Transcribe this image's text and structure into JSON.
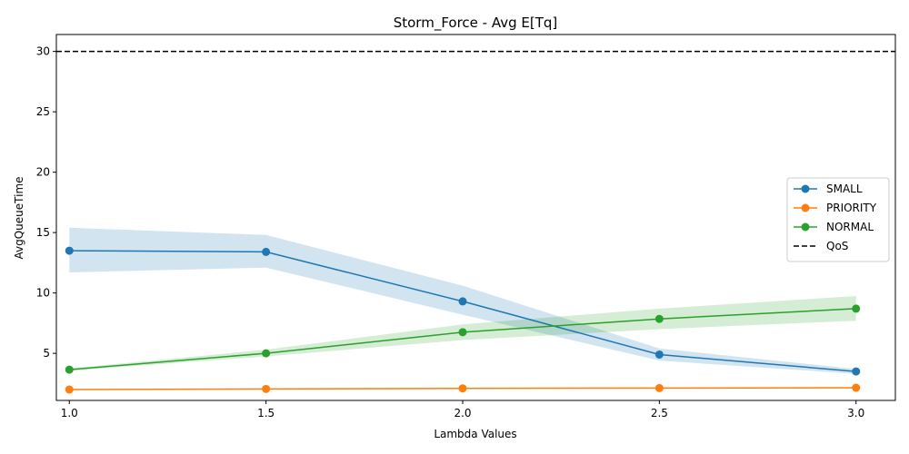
{
  "chart_data": {
    "type": "line",
    "title": "Storm_Force - Avg E[Tq]",
    "xlabel": "Lambda Values",
    "ylabel": "AvgQueueTime",
    "x": [
      1.0,
      1.5,
      2.0,
      2.5,
      3.0
    ],
    "x_ticks": [
      "1.0",
      "1.5",
      "2.0",
      "2.5",
      "3.0"
    ],
    "y_ticks": [
      "5",
      "10",
      "15",
      "20",
      "25",
      "30"
    ],
    "xlim": [
      0.967,
      3.1
    ],
    "ylim": [
      1.1,
      31.4
    ],
    "grid": false,
    "legend_position": "center-right",
    "series": [
      {
        "name": "SMALL",
        "color": "#1f77b4",
        "values": [
          13.5,
          13.4,
          9.3,
          4.9,
          3.5
        ],
        "band_lower": [
          11.7,
          12.1,
          8.2,
          4.4,
          3.3
        ],
        "band_upper": [
          15.4,
          14.8,
          10.6,
          5.4,
          3.7
        ]
      },
      {
        "name": "PRIORITY",
        "color": "#ff7f0e",
        "values": [
          2.0,
          2.05,
          2.1,
          2.12,
          2.15
        ],
        "band_lower": [
          1.95,
          2.0,
          2.05,
          2.07,
          2.1
        ],
        "band_upper": [
          2.05,
          2.1,
          2.15,
          2.17,
          2.2
        ]
      },
      {
        "name": "NORMAL",
        "color": "#2ca02c",
        "values": [
          3.65,
          5.0,
          6.75,
          7.85,
          8.7
        ],
        "band_lower": [
          3.55,
          4.75,
          6.1,
          7.0,
          7.7
        ],
        "band_upper": [
          3.75,
          5.3,
          7.4,
          8.7,
          9.75
        ]
      }
    ],
    "reference_lines": [
      {
        "name": "QoS",
        "y": 30,
        "color": "#000000",
        "style": "dashed"
      }
    ]
  }
}
